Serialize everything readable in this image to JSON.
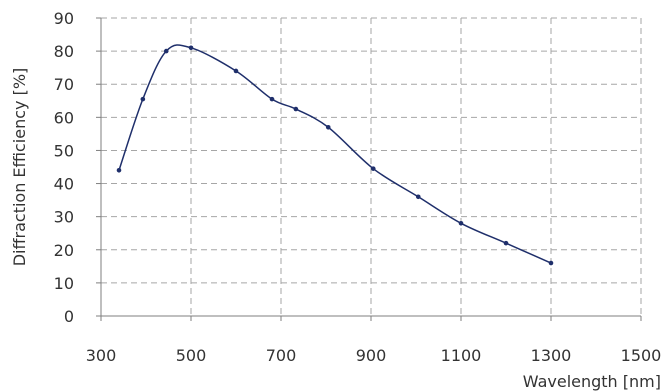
{
  "chart_data": {
    "type": "line",
    "title": "",
    "xlabel": "Wavelength [nm]",
    "ylabel": "Diffraction Efficiency [%]",
    "xlim": [
      300,
      1500
    ],
    "ylim": [
      0,
      90
    ],
    "xticks": [
      300,
      500,
      700,
      900,
      1100,
      1300,
      1500
    ],
    "yticks": [
      0,
      10,
      20,
      30,
      40,
      50,
      60,
      70,
      80,
      90
    ],
    "grid": true,
    "legend": "none",
    "colors": {
      "line": "#1f2f6b",
      "grid": "#a6a6a6",
      "axis": "#7f7f7f"
    },
    "series": [
      {
        "x": [
          340,
          393,
          445,
          500,
          600,
          680,
          733,
          805,
          905,
          1005,
          1100,
          1200,
          1300
        ],
        "y": [
          44,
          65.5,
          80,
          81,
          74,
          65.5,
          62.5,
          57,
          44.5,
          36,
          28,
          22,
          16
        ]
      }
    ]
  }
}
